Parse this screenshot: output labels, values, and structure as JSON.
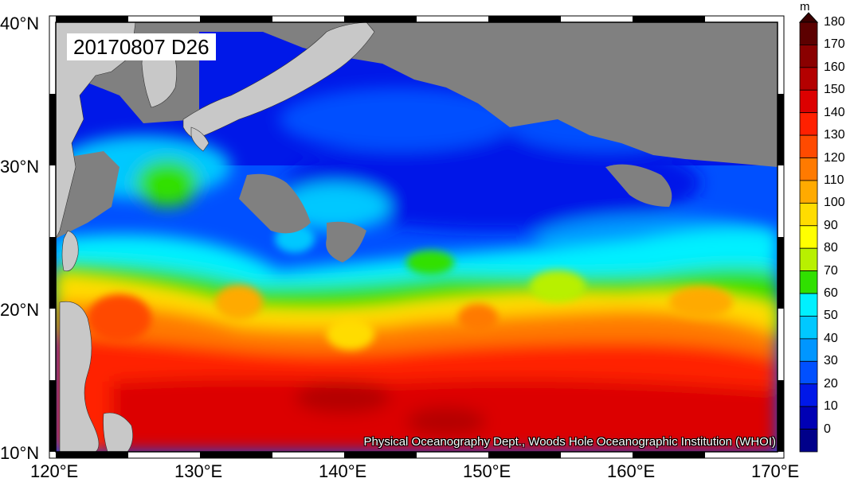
{
  "title": "20170807 D26",
  "credit": "Physical Oceanography Dept., Woods Hole Oceanographic Institution (WHOI)",
  "colorbar": {
    "units": "m",
    "labels": [
      "180",
      "170",
      "160",
      "150",
      "140",
      "130",
      "120",
      "110",
      "100",
      "90",
      "80",
      "70",
      "60",
      "50",
      "40",
      "30",
      "20",
      "10",
      "0"
    ],
    "colors": [
      "#3a0000",
      "#5c0000",
      "#8a0000",
      "#b40000",
      "#dc0000",
      "#ff2000",
      "#ff4a00",
      "#ff7a00",
      "#ffaa00",
      "#ffdc00",
      "#ffff00",
      "#b8f000",
      "#30e000",
      "#00f0ff",
      "#00c8ff",
      "#0096ff",
      "#0050ff",
      "#0018e8",
      "#0000b4",
      "#00008a"
    ]
  },
  "axes": {
    "x_ticks": [
      "120°E",
      "130°E",
      "140°E",
      "150°E",
      "160°E",
      "170°E"
    ],
    "y_ticks": [
      "40°N",
      "30°N",
      "20°N",
      "10°N"
    ]
  },
  "map": {
    "region": "Western North Pacific",
    "lon_range": [
      120,
      170
    ],
    "lat_range": [
      10,
      40
    ],
    "variable": "D26",
    "land_color": "#c8c8c8",
    "missing_color": "#808080"
  }
}
